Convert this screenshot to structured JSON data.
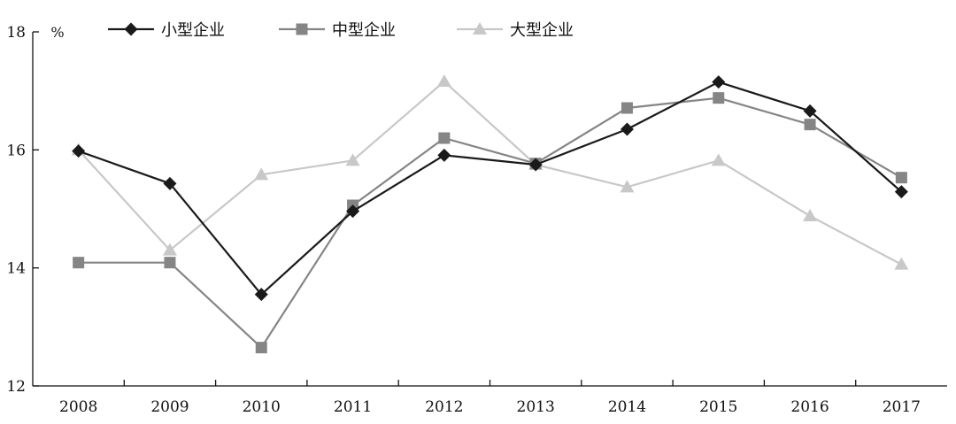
{
  "chart_data": {
    "type": "line",
    "title": "",
    "xlabel": "",
    "ylabel": "",
    "y_unit": "%",
    "x": [
      "2008",
      "2009",
      "2010",
      "2011",
      "2012",
      "2013",
      "2014",
      "2015",
      "2016",
      "2017"
    ],
    "ylim": [
      12,
      18
    ],
    "yticks": [
      "12",
      "14",
      "16",
      "18"
    ],
    "grid": false,
    "legend_position": "top",
    "series": [
      {
        "name": "小型企业",
        "marker": "diamond",
        "color": "#1a1a1a",
        "values": [
          15.98,
          15.43,
          13.55,
          14.96,
          15.91,
          15.75,
          16.35,
          17.15,
          16.66,
          15.29
        ]
      },
      {
        "name": "中型企业",
        "marker": "square",
        "color": "#858585",
        "values": [
          14.09,
          14.09,
          12.65,
          15.06,
          16.2,
          15.77,
          16.71,
          16.88,
          16.43,
          15.53
        ]
      },
      {
        "name": "大型企业",
        "marker": "triangle",
        "color": "#c8c8c8",
        "values": [
          16.0,
          14.3,
          15.58,
          15.82,
          17.16,
          15.75,
          15.37,
          15.82,
          14.88,
          14.06
        ]
      }
    ]
  }
}
